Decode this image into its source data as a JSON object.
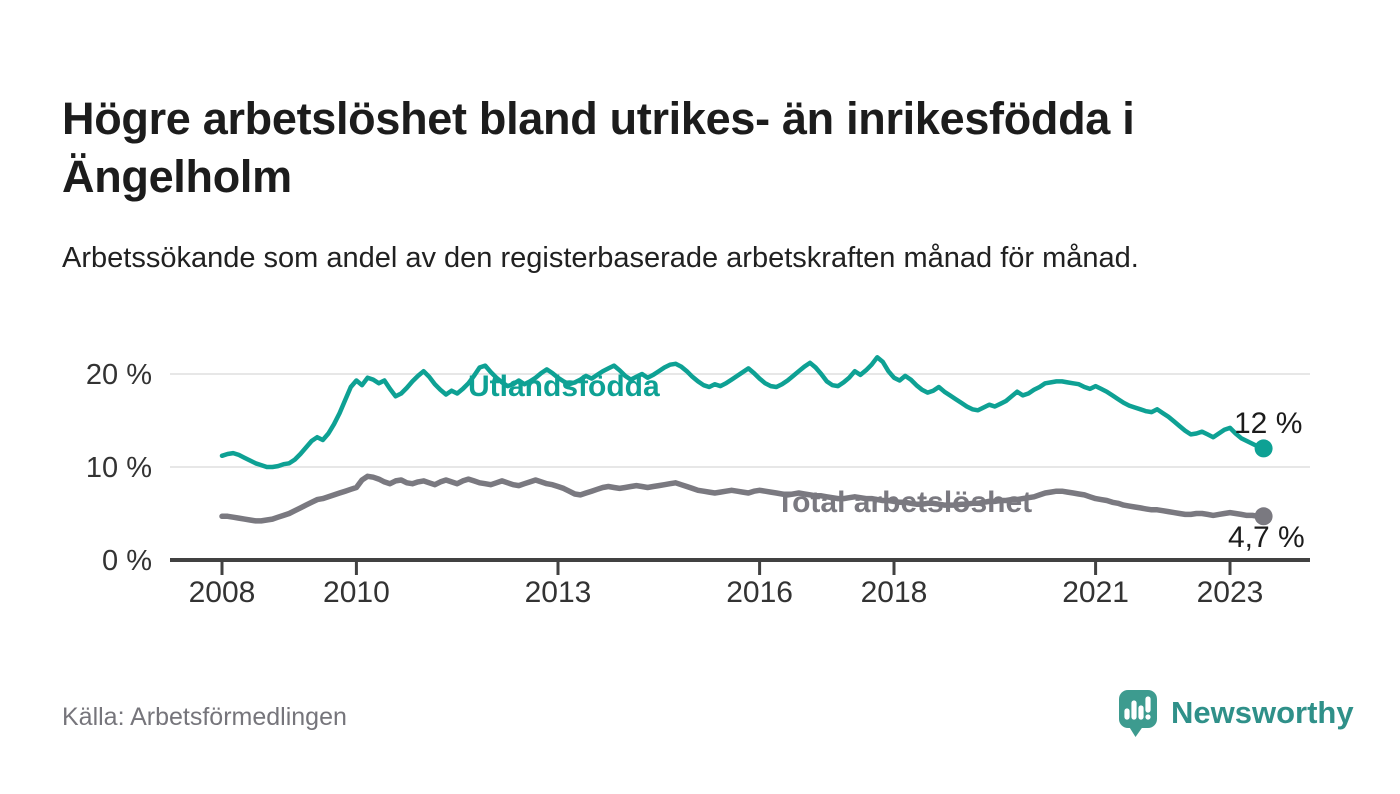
{
  "header": {
    "title": "Högre arbetslöshet bland utrikes- än inrikesfödda i Ängelholm",
    "subtitle": "Arbetssökande som andel av den registerbaserade arbetskraften månad för månad."
  },
  "footer": {
    "source": "Källa: Arbetsförmedlingen",
    "logo_text": "Newsworthy"
  },
  "colors": {
    "series_foreign": "#0ea194",
    "series_total": "#7a7980",
    "grid": "#e7e7e7",
    "axis": "#414141",
    "text_dark": "#1c1c1c",
    "text_axis": "#333333",
    "text_muted": "#76757b",
    "logo": "#3d9b8f",
    "logo_text": "#2f9089"
  },
  "chart_data": {
    "type": "line",
    "title": "Högre arbetslöshet bland utrikes- än inrikesfödda i Ängelholm",
    "subtitle": "Arbetssökande som andel av den registerbaserade arbetskraften månad för månad.",
    "x_unit": "month",
    "x_start": "2008-01",
    "x_end": "2023-07",
    "x_ticks": [
      2008,
      2010,
      2013,
      2016,
      2018,
      2021,
      2023
    ],
    "y_ticks": [
      {
        "value": 0,
        "label": "0 %"
      },
      {
        "value": 10,
        "label": "10 %"
      },
      {
        "value": 20,
        "label": "20 %"
      }
    ],
    "ylim": [
      0,
      23.5
    ],
    "grid": "horizontal",
    "legend_position": "inline-labels",
    "series": [
      {
        "name": "Utlandsfödda",
        "color": "#0ea194",
        "end_label": "12 %",
        "end_value": 12.0,
        "values": [
          11.2,
          11.4,
          11.5,
          11.3,
          11.0,
          10.7,
          10.4,
          10.2,
          10.0,
          10.0,
          10.1,
          10.3,
          10.4,
          10.8,
          11.4,
          12.1,
          12.8,
          13.2,
          12.9,
          13.6,
          14.6,
          15.8,
          17.2,
          18.6,
          19.3,
          18.8,
          19.6,
          19.4,
          19.0,
          19.3,
          18.4,
          17.6,
          17.9,
          18.5,
          19.2,
          19.8,
          20.3,
          19.7,
          18.9,
          18.3,
          17.8,
          18.2,
          17.9,
          18.4,
          19.0,
          19.8,
          20.7,
          20.9,
          20.2,
          19.6,
          19.1,
          18.7,
          18.9,
          19.3,
          18.9,
          19.2,
          19.6,
          20.1,
          20.5,
          20.1,
          19.6,
          19.2,
          18.9,
          19.1,
          19.4,
          19.8,
          19.5,
          19.9,
          20.3,
          20.6,
          20.9,
          20.4,
          19.8,
          19.4,
          19.7,
          20.0,
          19.6,
          19.9,
          20.3,
          20.7,
          21.0,
          21.1,
          20.8,
          20.3,
          19.7,
          19.2,
          18.8,
          18.6,
          18.9,
          18.7,
          19.0,
          19.4,
          19.8,
          20.2,
          20.6,
          20.1,
          19.5,
          19.0,
          18.7,
          18.6,
          18.9,
          19.3,
          19.8,
          20.3,
          20.8,
          21.2,
          20.7,
          20.0,
          19.2,
          18.8,
          18.7,
          19.1,
          19.6,
          20.3,
          19.9,
          20.4,
          21.0,
          21.8,
          21.3,
          20.3,
          19.6,
          19.3,
          19.8,
          19.4,
          18.8,
          18.3,
          18.0,
          18.2,
          18.6,
          18.1,
          17.7,
          17.3,
          16.9,
          16.5,
          16.2,
          16.1,
          16.4,
          16.7,
          16.5,
          16.8,
          17.1,
          17.6,
          18.1,
          17.7,
          17.9,
          18.3,
          18.6,
          19.0,
          19.1,
          19.2,
          19.2,
          19.1,
          19.0,
          18.9,
          18.6,
          18.4,
          18.7,
          18.4,
          18.1,
          17.7,
          17.3,
          16.9,
          16.6,
          16.4,
          16.2,
          16.0,
          15.9,
          16.2,
          15.8,
          15.4,
          14.9,
          14.4,
          13.9,
          13.5,
          13.6,
          13.8,
          13.5,
          13.2,
          13.6,
          14.0,
          14.2,
          13.6,
          13.1,
          12.8,
          12.5,
          12.2,
          12.0
        ]
      },
      {
        "name": "Total arbetslöshet",
        "color": "#7a7980",
        "end_label": "4,7 %",
        "end_value": 4.7,
        "values": [
          4.7,
          4.7,
          4.6,
          4.5,
          4.4,
          4.3,
          4.2,
          4.2,
          4.3,
          4.4,
          4.6,
          4.8,
          5.0,
          5.3,
          5.6,
          5.9,
          6.2,
          6.5,
          6.6,
          6.8,
          7.0,
          7.2,
          7.4,
          7.6,
          7.8,
          8.6,
          9.0,
          8.9,
          8.7,
          8.4,
          8.2,
          8.5,
          8.6,
          8.3,
          8.2,
          8.4,
          8.5,
          8.3,
          8.1,
          8.4,
          8.6,
          8.4,
          8.2,
          8.5,
          8.7,
          8.5,
          8.3,
          8.2,
          8.1,
          8.3,
          8.5,
          8.3,
          8.1,
          8.0,
          8.2,
          8.4,
          8.6,
          8.4,
          8.2,
          8.1,
          7.9,
          7.7,
          7.4,
          7.1,
          7.0,
          7.2,
          7.4,
          7.6,
          7.8,
          7.9,
          7.8,
          7.7,
          7.8,
          7.9,
          8.0,
          7.9,
          7.8,
          7.9,
          8.0,
          8.1,
          8.2,
          8.3,
          8.1,
          7.9,
          7.7,
          7.5,
          7.4,
          7.3,
          7.2,
          7.3,
          7.4,
          7.5,
          7.4,
          7.3,
          7.2,
          7.4,
          7.5,
          7.4,
          7.3,
          7.2,
          7.1,
          7.0,
          7.1,
          7.2,
          7.1,
          7.0,
          6.9,
          6.9,
          6.8,
          6.7,
          6.6,
          6.6,
          6.7,
          6.8,
          6.7,
          6.6,
          6.6,
          6.5,
          6.4,
          6.4,
          6.3,
          6.2,
          6.2,
          6.1,
          6.0,
          6.0,
          6.1,
          6.1,
          6.0,
          5.9,
          5.9,
          5.9,
          6.0,
          6.0,
          6.1,
          6.1,
          6.2,
          6.3,
          6.3,
          6.4,
          6.4,
          6.5,
          6.5,
          6.6,
          6.7,
          6.8,
          7.0,
          7.2,
          7.3,
          7.4,
          7.4,
          7.3,
          7.2,
          7.1,
          7.0,
          6.8,
          6.6,
          6.5,
          6.4,
          6.2,
          6.1,
          5.9,
          5.8,
          5.7,
          5.6,
          5.5,
          5.4,
          5.4,
          5.3,
          5.2,
          5.1,
          5.0,
          4.9,
          4.9,
          5.0,
          5.0,
          4.9,
          4.8,
          4.9,
          5.0,
          5.1,
          5.0,
          4.9,
          4.8,
          4.8,
          4.7,
          4.7
        ]
      }
    ]
  }
}
